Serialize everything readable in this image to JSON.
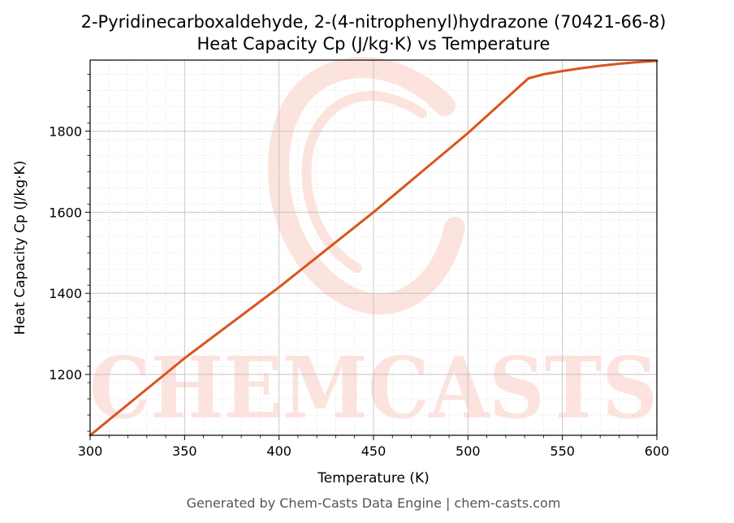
{
  "chart_data": {
    "type": "line",
    "title": "2-Pyridinecarboxaldehyde, 2-(4-nitrophenyl)hydrazone (70421-66-8)",
    "subtitle": "Heat Capacity Cp (J/kg·K) vs Temperature",
    "xlabel": "Temperature (K)",
    "ylabel": "Heat Capacity Cp (J/kg·K)",
    "xlim": [
      300,
      600
    ],
    "ylim": [
      1050,
      1975
    ],
    "xticks": [
      300,
      350,
      400,
      450,
      500,
      550,
      600
    ],
    "yticks": [
      1200,
      1400,
      1600,
      1800
    ],
    "grid": true,
    "series": [
      {
        "color": "#d9541e",
        "x": [
          300,
          350,
          400,
          450,
          500,
          532,
          540,
          550,
          560,
          570,
          580,
          590,
          600
        ],
        "y": [
          1050,
          1240,
          1415,
          1600,
          1795,
          1930,
          1940,
          1948,
          1955,
          1961,
          1966,
          1970,
          1973
        ]
      }
    ]
  },
  "watermark": "CHEMCASTS",
  "footer": "Generated by Chem-Casts Data Engine | chem-casts.com"
}
